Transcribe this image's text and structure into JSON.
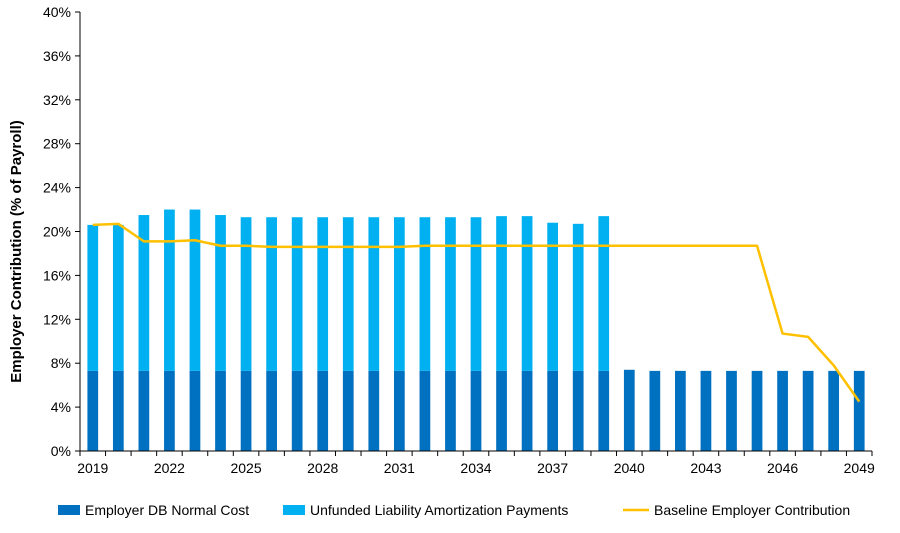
{
  "chart_data": {
    "type": "bar",
    "ylabel": "Employer Contribution (% of Payroll)",
    "ylim": [
      0,
      40
    ],
    "y_ticks": [
      "0%",
      "4%",
      "8%",
      "12%",
      "16%",
      "20%",
      "24%",
      "28%",
      "32%",
      "36%",
      "40%"
    ],
    "x_tick_labels": [
      "2019",
      "2022",
      "2025",
      "2028",
      "2031",
      "2034",
      "2037",
      "2040",
      "2043",
      "2046",
      "2049"
    ],
    "categories": [
      2019,
      2020,
      2021,
      2022,
      2023,
      2024,
      2025,
      2026,
      2027,
      2028,
      2029,
      2030,
      2031,
      2032,
      2033,
      2034,
      2035,
      2036,
      2037,
      2038,
      2039,
      2040,
      2041,
      2042,
      2043,
      2044,
      2045,
      2046,
      2047,
      2048,
      2049
    ],
    "series": [
      {
        "name": "Employer DB Normal Cost",
        "kind": "stacked-bar",
        "color": "#0070C0",
        "values": [
          7.3,
          7.3,
          7.3,
          7.3,
          7.3,
          7.3,
          7.3,
          7.3,
          7.3,
          7.3,
          7.3,
          7.3,
          7.3,
          7.3,
          7.3,
          7.3,
          7.3,
          7.3,
          7.3,
          7.3,
          7.3,
          7.4,
          7.3,
          7.3,
          7.3,
          7.3,
          7.3,
          7.3,
          7.3,
          7.3,
          7.3
        ]
      },
      {
        "name": "Unfunded Liability Amortization Payments",
        "kind": "stacked-bar",
        "color": "#00B0F0",
        "values": [
          13.3,
          13.3,
          14.2,
          14.7,
          14.7,
          14.2,
          14.0,
          14.0,
          14.0,
          14.0,
          14.0,
          14.0,
          14.0,
          14.0,
          14.0,
          14.0,
          14.1,
          14.1,
          13.5,
          13.4,
          14.1,
          0,
          0,
          0,
          0,
          0,
          0,
          0,
          0,
          0,
          0
        ]
      },
      {
        "name": "Baseline Employer Contribution",
        "kind": "line",
        "color": "#FFC000",
        "values": [
          20.6,
          20.7,
          19.1,
          19.1,
          19.2,
          18.7,
          18.7,
          18.6,
          18.6,
          18.6,
          18.6,
          18.6,
          18.6,
          18.7,
          18.7,
          18.7,
          18.7,
          18.7,
          18.7,
          18.7,
          18.7,
          18.7,
          18.7,
          18.7,
          18.7,
          18.7,
          18.7,
          10.7,
          10.4,
          7.8,
          4.5
        ]
      }
    ],
    "legend_position": "bottom",
    "grid": false
  }
}
